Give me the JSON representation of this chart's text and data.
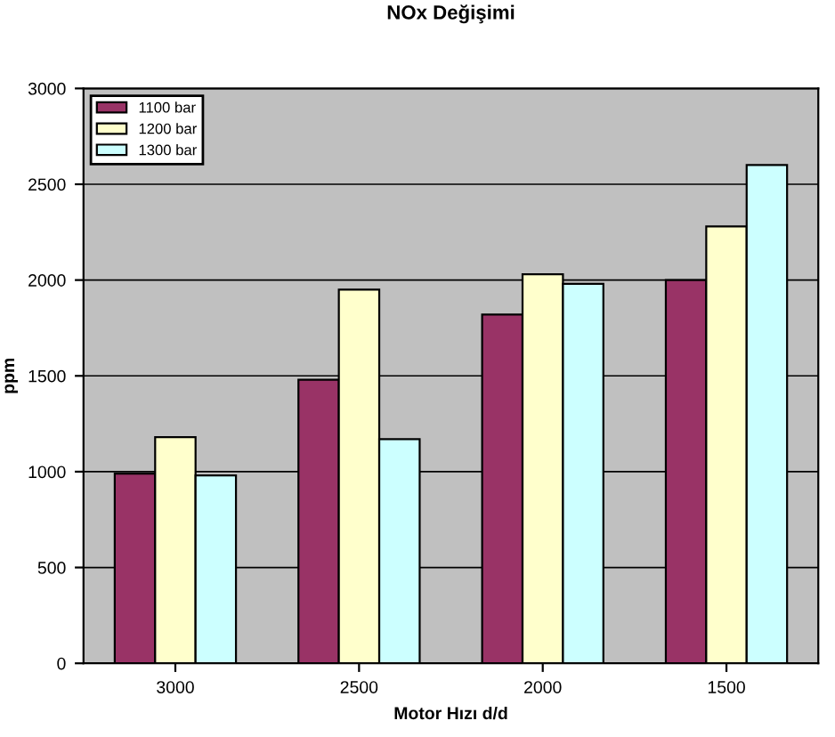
{
  "chart_data": {
    "type": "bar",
    "title": "NOx Değişimi",
    "xlabel": "Motor Hızı d/d",
    "ylabel": "ppm",
    "categories": [
      "3000",
      "2500",
      "2000",
      "1500"
    ],
    "series": [
      {
        "name": "1100 bar",
        "color": "#993366",
        "values": [
          990,
          1480,
          1820,
          2000
        ]
      },
      {
        "name": "1200 bar",
        "color": "#ffffcc",
        "values": [
          1180,
          1950,
          2030,
          2280
        ]
      },
      {
        "name": "1300 bar",
        "color": "#ccffff",
        "values": [
          980,
          1170,
          1980,
          2600
        ]
      }
    ],
    "ylim": [
      0,
      3000
    ],
    "yticks": [
      0,
      500,
      1000,
      1500,
      2000,
      2500,
      3000
    ],
    "grid": "y",
    "legend": "top left"
  }
}
